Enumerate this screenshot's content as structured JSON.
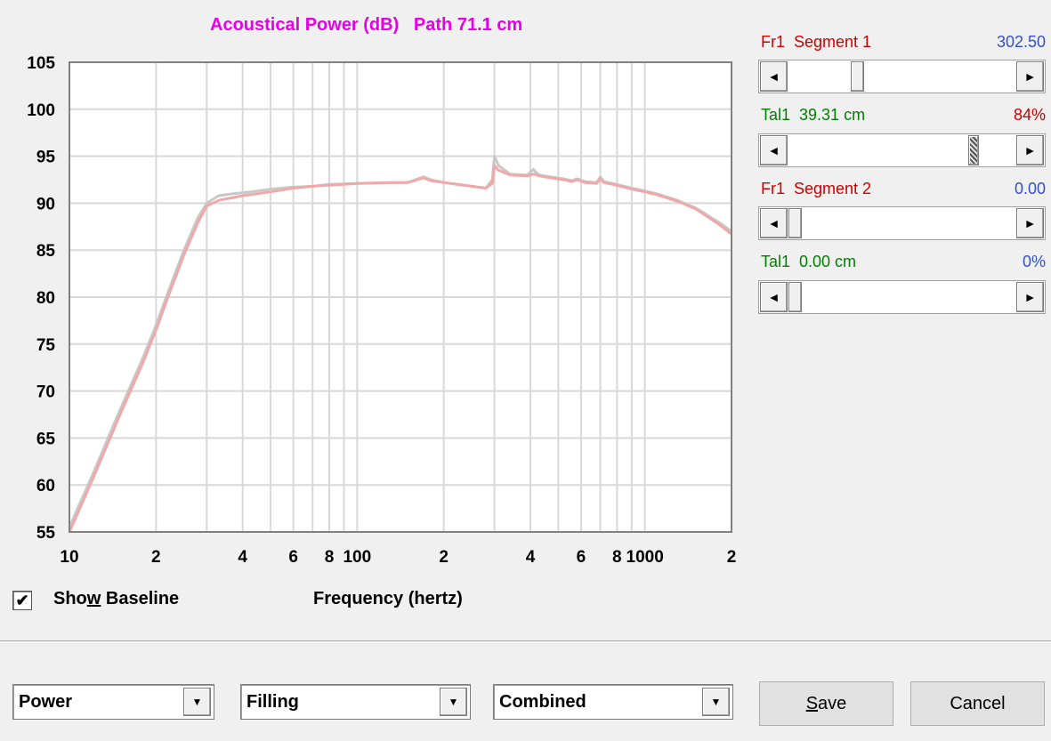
{
  "chart_data": {
    "type": "line",
    "title": "Acoustical Power (dB)   Path 71.1 cm",
    "xlabel": "Frequency (hertz)",
    "ylabel": "",
    "x_scale": "log",
    "xlim": [
      10,
      2000
    ],
    "ylim": [
      55,
      105
    ],
    "yticks": [
      55,
      60,
      65,
      70,
      75,
      80,
      85,
      90,
      95,
      100,
      105
    ],
    "xtick_labels": [
      {
        "x": 10,
        "label": "10"
      },
      {
        "x": 20,
        "label": "2"
      },
      {
        "x": 40,
        "label": "4"
      },
      {
        "x": 60,
        "label": "6"
      },
      {
        "x": 80,
        "label": "8"
      },
      {
        "x": 100,
        "label": "100"
      },
      {
        "x": 200,
        "label": "2"
      },
      {
        "x": 400,
        "label": "4"
      },
      {
        "x": 600,
        "label": "6"
      },
      {
        "x": 800,
        "label": "8"
      },
      {
        "x": 1000,
        "label": "1000"
      },
      {
        "x": 2000,
        "label": "2"
      }
    ],
    "grid": true,
    "series": [
      {
        "color": "#c8c8c8",
        "x": [
          10,
          12,
          15,
          18,
          20,
          22,
          25,
          28,
          30,
          33,
          37,
          40,
          45,
          50,
          60,
          70,
          80,
          100,
          130,
          150,
          170,
          180,
          200,
          250,
          280,
          295,
          300,
          310,
          340,
          390,
          410,
          420,
          430,
          470,
          520,
          560,
          580,
          620,
          680,
          700,
          720,
          800,
          900,
          1000,
          1100,
          1300,
          1500,
          1800,
          2000
        ],
        "values": [
          55.5,
          61,
          68,
          73.5,
          77,
          80.5,
          85,
          88.5,
          90,
          90.8,
          91,
          91.1,
          91.3,
          91.5,
          91.7,
          91.8,
          92,
          92.1,
          92.2,
          92.2,
          92.8,
          92.5,
          92.2,
          91.8,
          91.6,
          92.5,
          95,
          94,
          93.1,
          93,
          93.6,
          93.2,
          93,
          92.8,
          92.6,
          92.4,
          92.6,
          92.3,
          92.2,
          92.8,
          92.3,
          92,
          91.6,
          91.3,
          91,
          90.3,
          89.5,
          88,
          87
        ]
      },
      {
        "color": "#f0a8a8",
        "x": [
          10,
          12,
          15,
          18,
          20,
          22,
          25,
          28,
          30,
          33,
          37,
          40,
          45,
          50,
          60,
          70,
          80,
          100,
          130,
          150,
          170,
          180,
          200,
          250,
          280,
          295,
          300,
          310,
          340,
          390,
          410,
          420,
          430,
          470,
          520,
          560,
          580,
          620,
          680,
          700,
          720,
          800,
          900,
          1000,
          1100,
          1300,
          1500,
          1800,
          2000
        ],
        "values": [
          55,
          60.5,
          67.5,
          73,
          76.5,
          80,
          84.5,
          88,
          89.7,
          90.3,
          90.6,
          90.8,
          91,
          91.2,
          91.6,
          91.8,
          91.9,
          92.1,
          92.2,
          92.2,
          92.7,
          92.4,
          92.2,
          91.8,
          91.6,
          92.1,
          94,
          93.5,
          93,
          92.9,
          93.1,
          93,
          92.9,
          92.7,
          92.5,
          92.3,
          92.5,
          92.2,
          92.1,
          92.6,
          92.2,
          91.9,
          91.5,
          91.2,
          90.9,
          90.2,
          89.4,
          87.8,
          86.7
        ]
      }
    ]
  },
  "controls": {
    "show_baseline_checked": "✔",
    "show_baseline_pre": "Sho",
    "show_baseline_u": "w",
    "show_baseline_post": " Baseline"
  },
  "sliders": [
    {
      "name_color": "#cc0000",
      "label": "Fr1  Segment 1",
      "value": "302.50",
      "value_color": "#3050d0",
      "position": 0.29
    },
    {
      "name_color": "#008000",
      "label": "Tal1  39.31 cm",
      "value": "84%",
      "value_color": "#cc0000",
      "position": 0.84
    },
    {
      "name_color": "#cc0000",
      "label": "Fr1  Segment 2",
      "value": "0.00",
      "value_color": "#3050d0",
      "position": 0.0
    },
    {
      "name_color": "#008000",
      "label": "Tal1  0.00 cm",
      "value": "0%",
      "value_color": "#3050d0",
      "position": 0.0
    }
  ],
  "dropdowns": [
    {
      "selected": "Power"
    },
    {
      "selected": "Filling"
    },
    {
      "selected": "Combined"
    }
  ],
  "buttons": {
    "save_mnemonic": "S",
    "save_rest": "ave",
    "cancel": "Cancel"
  },
  "icons": {
    "scroll_left": "◄",
    "scroll_right": "►",
    "dropdown_arrow": "▼"
  }
}
